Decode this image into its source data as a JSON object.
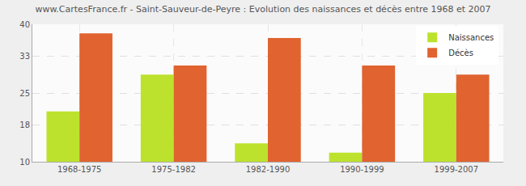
{
  "chart_data": {
    "type": "bar",
    "title": "www.CartesFrance.fr - Saint-Sauveur-de-Peyre : Evolution des naissances et décès entre 1968 et 2007",
    "categories": [
      "1968-1975",
      "1975-1982",
      "1982-1990",
      "1990-1999",
      "1999-2007"
    ],
    "series": [
      {
        "name": "Naissances",
        "color": "#bde22e",
        "values": [
          21,
          29,
          14,
          12,
          25
        ]
      },
      {
        "name": "Décès",
        "color": "#e06330",
        "values": [
          38,
          31,
          37,
          31,
          29
        ]
      }
    ],
    "ylim": [
      10,
      40
    ],
    "yticks": [
      10,
      18,
      25,
      33,
      40
    ],
    "grid": true,
    "legend": "top right"
  }
}
